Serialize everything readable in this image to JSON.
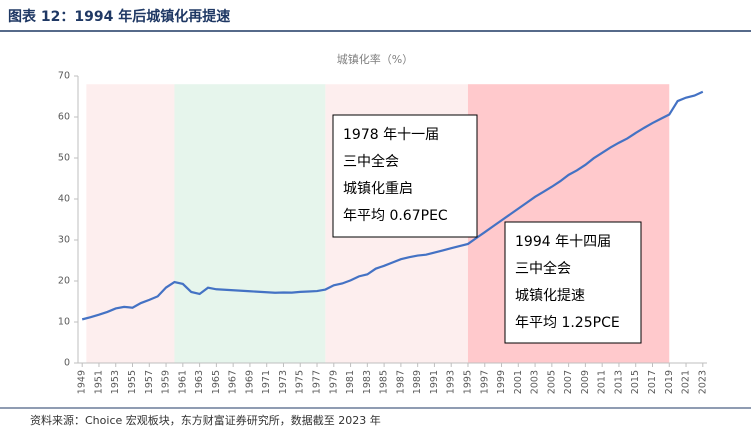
{
  "header": {
    "title": "图表 12：1994 年后城镇化再提速"
  },
  "chart_data": {
    "type": "line",
    "title": "城镇化率（%）",
    "x": [
      1949,
      1950,
      1951,
      1952,
      1953,
      1954,
      1955,
      1956,
      1957,
      1958,
      1959,
      1960,
      1961,
      1962,
      1963,
      1964,
      1965,
      1966,
      1967,
      1968,
      1969,
      1970,
      1971,
      1972,
      1973,
      1974,
      1975,
      1976,
      1977,
      1978,
      1979,
      1980,
      1981,
      1982,
      1983,
      1984,
      1985,
      1986,
      1987,
      1988,
      1989,
      1990,
      1991,
      1992,
      1993,
      1994,
      1995,
      1996,
      1997,
      1998,
      1999,
      2000,
      2001,
      2002,
      2003,
      2004,
      2005,
      2006,
      2007,
      2008,
      2009,
      2010,
      2011,
      2012,
      2013,
      2014,
      2015,
      2016,
      2017,
      2018,
      2019,
      2020,
      2021,
      2022,
      2023
    ],
    "series": [
      {
        "name": "城镇化率",
        "color": "#4472c4",
        "values": [
          10.64,
          11.18,
          11.78,
          12.46,
          13.31,
          13.69,
          13.48,
          14.62,
          15.39,
          16.25,
          18.41,
          19.75,
          19.29,
          17.33,
          16.84,
          18.37,
          17.98,
          17.86,
          17.74,
          17.62,
          17.5,
          17.38,
          17.26,
          17.13,
          17.2,
          17.16,
          17.34,
          17.44,
          17.55,
          17.92,
          18.96,
          19.39,
          20.16,
          21.13,
          21.62,
          23.01,
          23.71,
          24.52,
          25.32,
          25.81,
          26.21,
          26.41,
          26.94,
          27.46,
          27.99,
          28.51,
          29.04,
          30.48,
          31.91,
          33.35,
          34.78,
          36.22,
          37.66,
          39.09,
          40.53,
          41.76,
          42.99,
          44.34,
          45.89,
          46.99,
          48.34,
          49.95,
          51.27,
          52.57,
          53.73,
          54.77,
          56.1,
          57.35,
          58.52,
          59.58,
          60.6,
          63.89,
          64.72,
          65.22,
          66.16
        ]
      }
    ],
    "xlim": [
      1948.5,
      2023.5
    ],
    "xticks": [
      1949,
      1951,
      1953,
      1955,
      1957,
      1959,
      1961,
      1963,
      1965,
      1967,
      1969,
      1971,
      1973,
      1975,
      1977,
      1979,
      1981,
      1983,
      1985,
      1987,
      1989,
      1991,
      1993,
      1995,
      1997,
      1999,
      2001,
      2003,
      2005,
      2007,
      2009,
      2011,
      2013,
      2015,
      2017,
      2019,
      2021,
      2023
    ],
    "ylim": [
      0,
      70
    ],
    "yticks": [
      0,
      10,
      20,
      30,
      40,
      50,
      60,
      70
    ],
    "regions": [
      {
        "start": 1949.5,
        "end": 1960,
        "top": 68,
        "color": "#fdeeee"
      },
      {
        "start": 1960,
        "end": 1978,
        "top": 68,
        "color": "#e6f5ec"
      },
      {
        "start": 1978,
        "end": 1995,
        "top": 68,
        "color": "#fdeeee"
      },
      {
        "start": 1995,
        "end": 2019,
        "top": 68,
        "color": "#ffc9cc"
      }
    ],
    "annotations": [
      [
        "1978 年十一届",
        "三中全会",
        "城镇化重启",
        "年平均 0.67PEC"
      ],
      [
        "1994 年十四届",
        "三中全会",
        "城镇化提速",
        "年平均 1.25PCE"
      ]
    ]
  },
  "footer": {
    "source": "资料来源：Choice 宏观板块，东方财富证券研究所，数据截至 2023 年"
  }
}
